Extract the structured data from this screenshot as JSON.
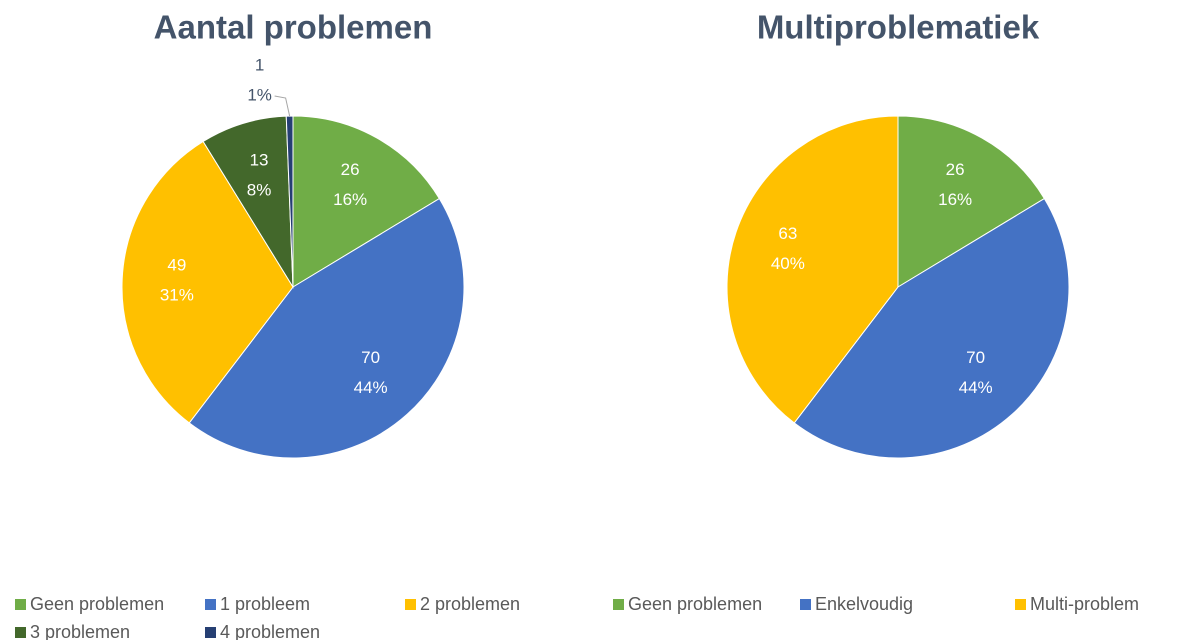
{
  "chart_data": [
    {
      "type": "pie",
      "title": "Aantal problemen",
      "categories": [
        "Geen problemen",
        "1 probleem",
        "2 problemen",
        "3 problemen",
        "4 problemen"
      ],
      "values": [
        26,
        70,
        49,
        13,
        1
      ],
      "percent_labels": [
        "16%",
        "44%",
        "31%",
        "8%",
        "1%"
      ],
      "colors": [
        "#70ad47",
        "#4472c4",
        "#ffc000",
        "#43682b",
        "#263f73"
      ],
      "legend": "bottom"
    },
    {
      "type": "pie",
      "title": "Multiproblematiek",
      "categories": [
        "Geen problemen",
        "Enkelvoudig",
        "Multi-problem"
      ],
      "values": [
        26,
        70,
        63
      ],
      "percent_labels": [
        "16%",
        "44%",
        "40%"
      ],
      "colors": [
        "#70ad47",
        "#4472c4",
        "#ffc000"
      ],
      "legend": "bottom"
    }
  ]
}
